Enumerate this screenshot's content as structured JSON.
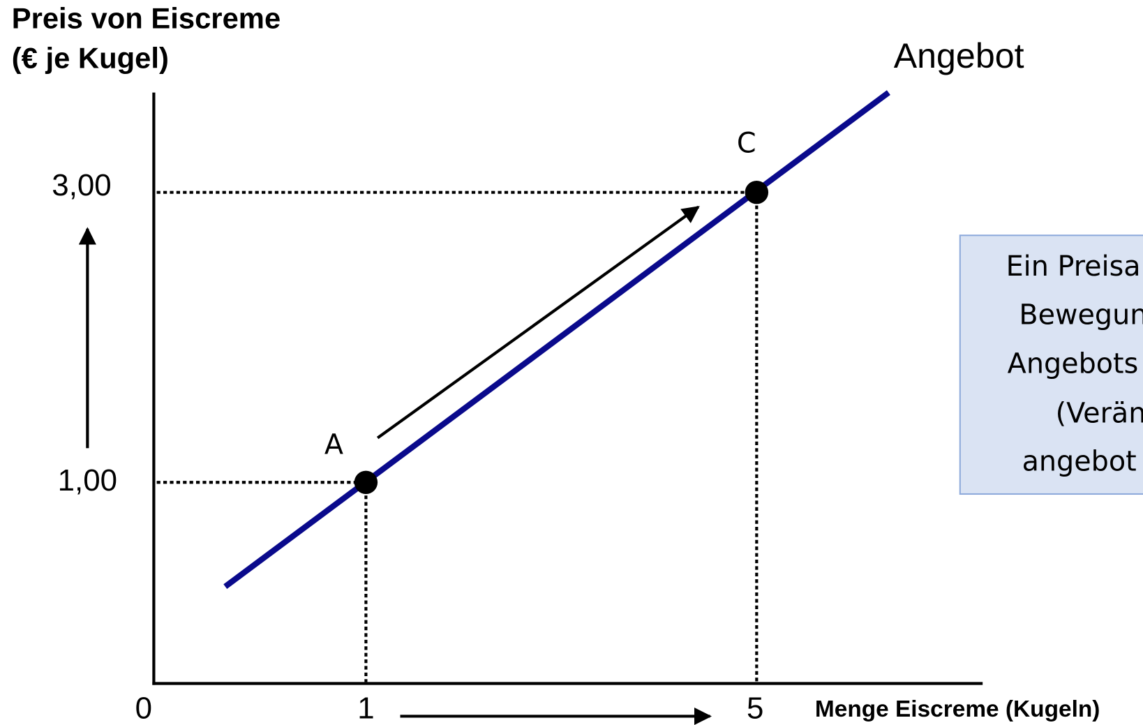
{
  "title": [
    "Preis von Eiscreme",
    "(€ je Kugel)"
  ],
  "curve_label": "Angebot",
  "y_labels": [
    "3,00",
    "1,00"
  ],
  "x_labels": [
    "0",
    "1",
    "5"
  ],
  "x_axis_label": "Menge  Eiscreme (Kugeln)",
  "points": [
    "A",
    "C"
  ],
  "note": [
    "Ein Preisa",
    "Bewegun",
    "Angebots",
    "(Verän",
    "angebot"
  ]
}
